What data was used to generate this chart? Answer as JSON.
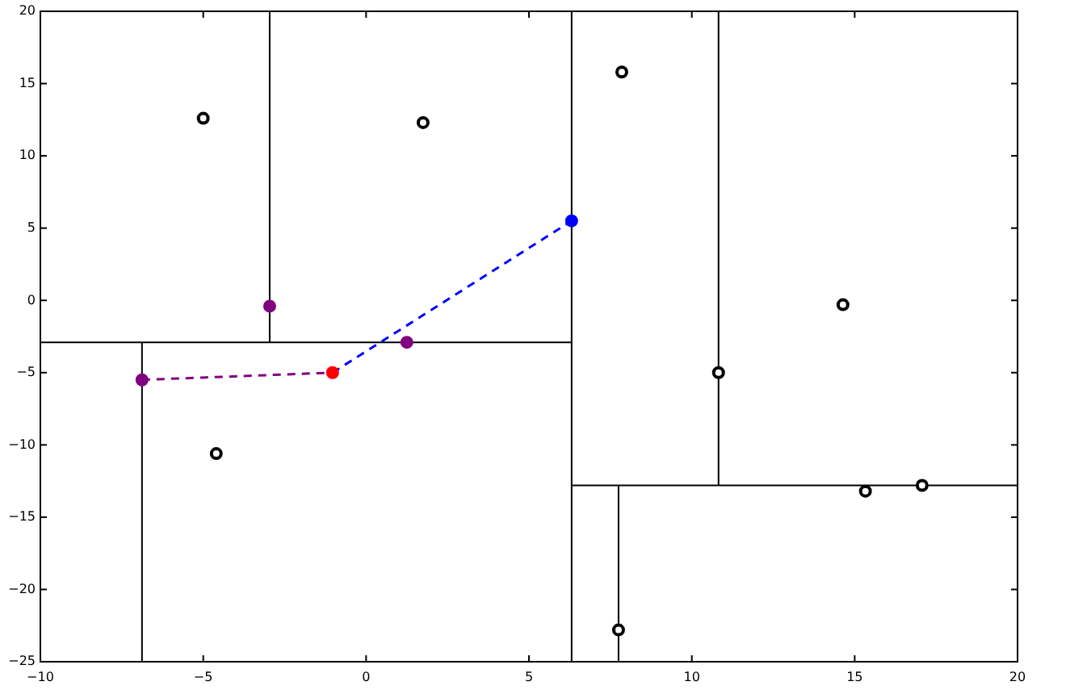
{
  "chart_data": {
    "type": "scatter",
    "xlim": [
      -10,
      20
    ],
    "ylim": [
      -25,
      20
    ],
    "xticks": [
      {
        "value": -10,
        "label": "−10"
      },
      {
        "value": -5,
        "label": "−5"
      },
      0,
      5,
      10,
      15,
      20
    ],
    "yticks": [
      {
        "value": -25,
        "label": "−25"
      },
      {
        "value": -20,
        "label": "−20"
      },
      {
        "value": -15,
        "label": "−15"
      },
      {
        "value": -10,
        "label": "−10"
      },
      {
        "value": -5,
        "label": "−5"
      },
      0,
      5,
      10,
      15,
      20
    ],
    "grid": false,
    "series": [
      {
        "type": "line",
        "color": "#000000",
        "x": [
          6.31,
          6.31
        ],
        "values": [
          -25,
          20
        ],
        "line_style": "solid"
      },
      {
        "type": "line",
        "color": "#000000",
        "x": [
          -10,
          6.31
        ],
        "values": [
          -2.9,
          -2.9
        ],
        "line_style": "solid"
      },
      {
        "type": "line",
        "color": "#000000",
        "x": [
          -2.96,
          -2.96
        ],
        "values": [
          -2.9,
          20
        ],
        "line_style": "solid"
      },
      {
        "type": "line",
        "color": "#000000",
        "x": [
          -6.88,
          -6.88
        ],
        "values": [
          -25,
          -2.9
        ],
        "line_style": "solid"
      },
      {
        "type": "line",
        "color": "#000000",
        "x": [
          10.82,
          10.82
        ],
        "values": [
          -12.8,
          20
        ],
        "line_style": "solid"
      },
      {
        "type": "line",
        "color": "#000000",
        "x": [
          6.31,
          20
        ],
        "values": [
          -12.8,
          -12.8
        ],
        "line_style": "solid"
      },
      {
        "type": "line",
        "color": "#000000",
        "x": [
          7.75,
          7.75
        ],
        "values": [
          -25,
          -12.8
        ],
        "line_style": "solid"
      },
      {
        "type": "line",
        "color": "#800080",
        "x": [
          -6.88,
          -1.03
        ],
        "values": [
          -5.5,
          -5
        ],
        "line_style": "dashed"
      },
      {
        "type": "line",
        "color": "#0000ff",
        "x": [
          -1.03,
          6.31
        ],
        "values": [
          -5,
          5.5
        ],
        "line_style": "dashed"
      },
      {
        "color": "#000000",
        "marker": "circle",
        "x": [
          -5,
          1.75,
          7.85,
          -4.6,
          10.82,
          14.64,
          15.33,
          17.07,
          7.75
        ],
        "values": [
          12.6,
          12.3,
          15.8,
          -10.6,
          -5,
          -0.3,
          -13.2,
          -12.8,
          -22.8
        ]
      },
      {
        "color": "#800080",
        "marker": "circle",
        "x": [
          -2.96,
          1.25,
          -6.88
        ],
        "values": [
          -0.4,
          -2.9,
          -5.5
        ]
      },
      {
        "color": "#ff0000",
        "marker": "circle",
        "x": [
          -1.03
        ],
        "values": [
          -5
        ]
      },
      {
        "color": "#0000ff",
        "marker": "circle",
        "x": [
          6.31
        ],
        "values": [
          5.5
        ]
      }
    ]
  }
}
